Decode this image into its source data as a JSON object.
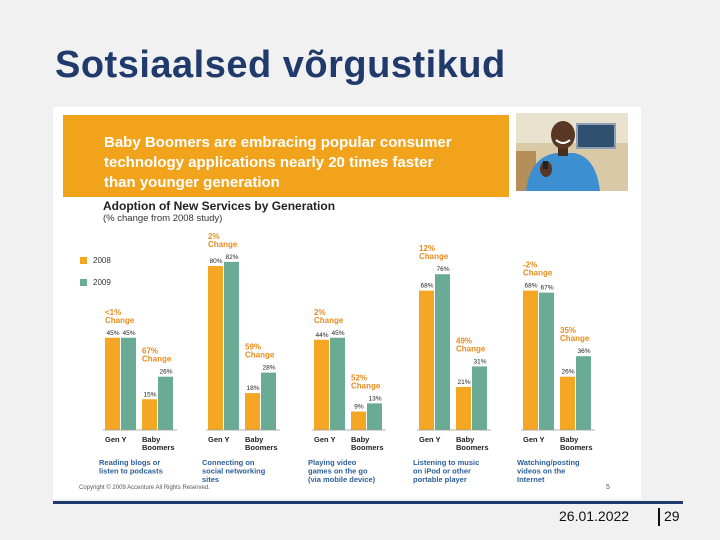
{
  "slide": {
    "title": "Sotsiaalsed võrgustikud",
    "date": "26.01.2022",
    "page": "29"
  },
  "figure": {
    "banner_lines": [
      "Baby Boomers are embracing popular consumer",
      "technology applications nearly 20 times faster",
      "than younger generation"
    ],
    "copyright": "Copyright © 2009 Accenture All Rights Reserved.",
    "page_number": "5"
  },
  "colors": {
    "series_2008": "#f5a623",
    "series_2009": "#6aab96",
    "banner": "#f2a31c",
    "title": "#1f3a6b",
    "change_label": "#e98b1c"
  },
  "chart_data": {
    "type": "bar",
    "title": "Adoption of New Services by Generation",
    "subtitle": "(% change from 2008 study)",
    "legend": [
      "2008",
      "2009"
    ],
    "ylim": [
      0,
      100
    ],
    "groups": [
      {
        "name": "Reading blogs or listen to podcasts",
        "caption_lines": [
          "Reading blogs or",
          "listen to podcasts"
        ],
        "categories": [
          {
            "label_lines": [
              "Gen Y"
            ],
            "values": [
              45,
              45
            ],
            "value_labels": [
              "45%",
              "45%"
            ],
            "change_lines": [
              "<1%",
              "Change"
            ]
          },
          {
            "label_lines": [
              "Baby",
              "Boomers"
            ],
            "values": [
              15,
              26
            ],
            "value_labels": [
              "15%",
              "26%"
            ],
            "change_lines": [
              "67%",
              "Change"
            ]
          }
        ]
      },
      {
        "name": "Connecting on social networking sites",
        "caption_lines": [
          "Connecting on",
          "social networking",
          "sites"
        ],
        "categories": [
          {
            "label_lines": [
              "Gen Y"
            ],
            "values": [
              80,
              82
            ],
            "value_labels": [
              "80%",
              "82%"
            ],
            "change_lines": [
              "2%",
              "Change"
            ]
          },
          {
            "label_lines": [
              "Baby",
              "Boomers"
            ],
            "values": [
              18,
              28
            ],
            "value_labels": [
              "18%",
              "28%"
            ],
            "change_lines": [
              "59%",
              "Change"
            ]
          }
        ]
      },
      {
        "name": "Playing video games on the go (via mobile device)",
        "caption_lines": [
          "Playing video",
          "games on the go",
          "(via mobile device)"
        ],
        "categories": [
          {
            "label_lines": [
              "Gen Y"
            ],
            "values": [
              44,
              45
            ],
            "value_labels": [
              "44%",
              "45%"
            ],
            "change_lines": [
              "2%",
              "Change"
            ]
          },
          {
            "label_lines": [
              "Baby",
              "Boomers"
            ],
            "values": [
              9,
              13
            ],
            "value_labels": [
              "9%",
              "13%"
            ],
            "change_lines": [
              "52%",
              "Change"
            ]
          }
        ]
      },
      {
        "name": "Listening to music on iPod or other portable player",
        "caption_lines": [
          "Listening to music",
          "on iPod or other",
          "portable player"
        ],
        "categories": [
          {
            "label_lines": [
              "Gen Y"
            ],
            "values": [
              68,
              76
            ],
            "value_labels": [
              "68%",
              "76%"
            ],
            "change_lines": [
              "12%",
              "Change"
            ]
          },
          {
            "label_lines": [
              "Baby",
              "Boomers"
            ],
            "values": [
              21,
              31
            ],
            "value_labels": [
              "21%",
              "31%"
            ],
            "change_lines": [
              "49%",
              "Change"
            ]
          }
        ]
      },
      {
        "name": "Watching/posting videos on the Internet",
        "caption_lines": [
          "Watching/posting",
          "videos on the",
          "Internet"
        ],
        "categories": [
          {
            "label_lines": [
              "Gen Y"
            ],
            "values": [
              68,
              67
            ],
            "value_labels": [
              "68%",
              "67%"
            ],
            "change_lines": [
              "-2%",
              "Change"
            ]
          },
          {
            "label_lines": [
              "Baby",
              "Boomers"
            ],
            "values": [
              26,
              36
            ],
            "value_labels": [
              "26%",
              "36%"
            ],
            "change_lines": [
              "35%",
              "Change"
            ]
          }
        ]
      }
    ]
  }
}
